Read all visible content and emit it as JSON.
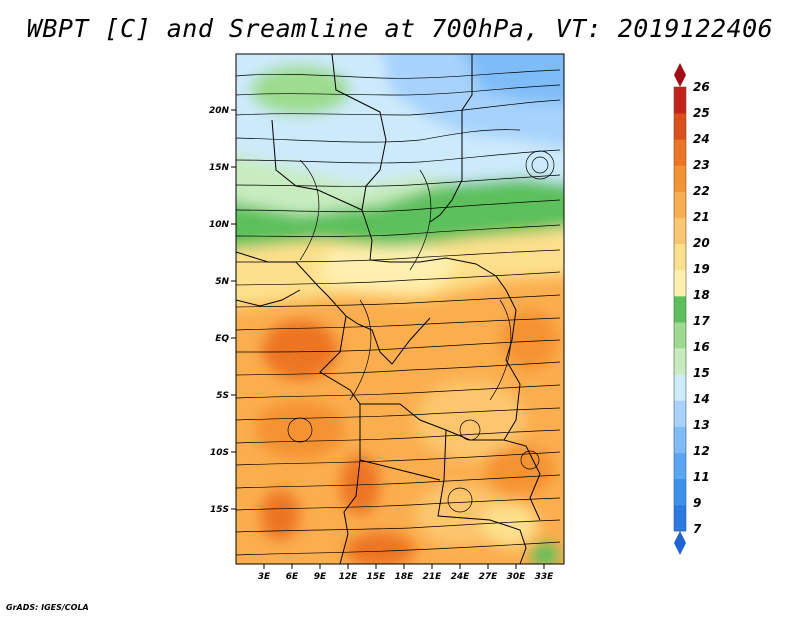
{
  "title": "WBPT [C] and Sreamline at 700hPa, VT: 2019122406",
  "credit": "GrADS: IGES/COLA",
  "map": {
    "lat_labels": [
      "20N",
      "15N",
      "10N",
      "5N",
      "EQ",
      "5S",
      "10S",
      "15S"
    ],
    "lon_labels": [
      "3E",
      "6E",
      "9E",
      "12E",
      "15E",
      "18E",
      "21E",
      "24E",
      "27E",
      "30E",
      "33E"
    ]
  },
  "colorbar": {
    "labels": [
      "7",
      "9",
      "11",
      "12",
      "13",
      "14",
      "15",
      "16",
      "17",
      "18",
      "19",
      "20",
      "21",
      "22",
      "23",
      "24",
      "25",
      "26"
    ],
    "colors": [
      "#1e64d8",
      "#2a7ae6",
      "#3c91ef",
      "#58a6f4",
      "#7ebcf8",
      "#a6d2fb",
      "#cdeafb",
      "#c8ecc0",
      "#9ddc8e",
      "#5cc05c",
      "#fff0b0",
      "#fde08c",
      "#fcc66e",
      "#fbae4e",
      "#f59332",
      "#ed7420",
      "#de4e18",
      "#c6241a",
      "#a40c14"
    ]
  }
}
